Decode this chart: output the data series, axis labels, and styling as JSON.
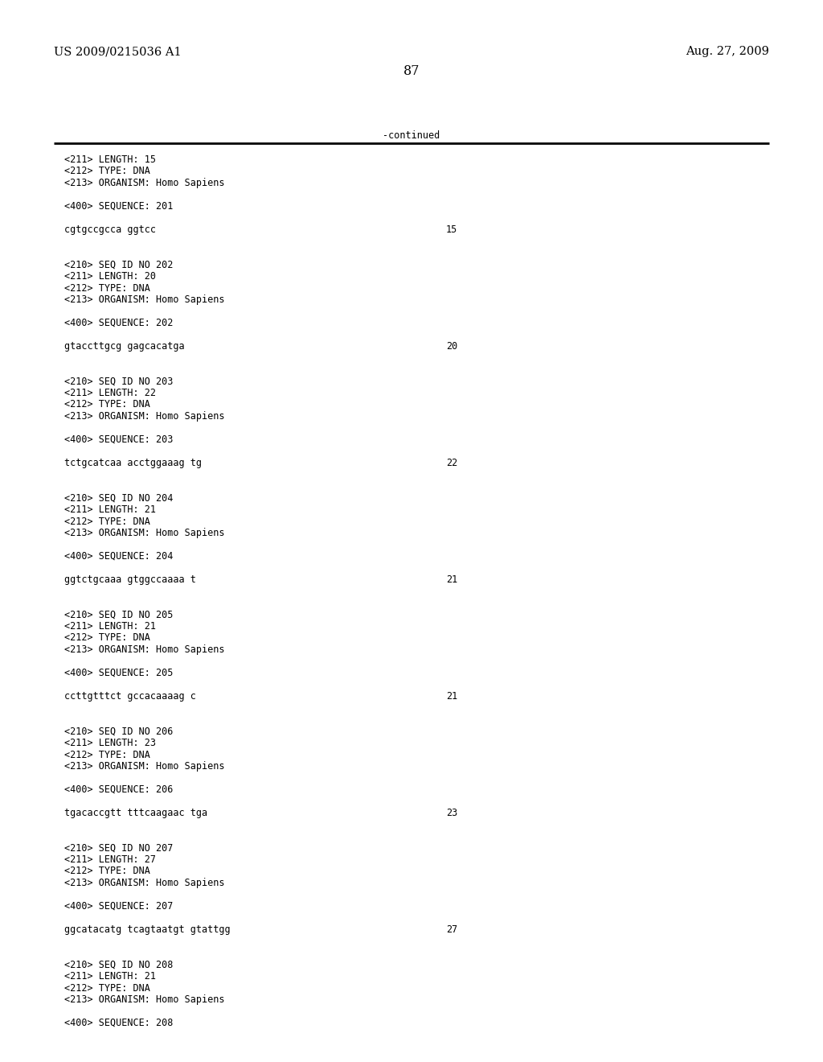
{
  "header_left": "US 2009/0215036 A1",
  "header_right": "Aug. 27, 2009",
  "page_number": "87",
  "continued_label": "-continued",
  "background_color": "#ffffff",
  "text_color": "#000000",
  "font_size_header": 10.5,
  "font_size_body": 8.5,
  "font_size_page": 11.5,
  "lines": [
    {
      "text": "<211> LENGTH: 15",
      "num": null
    },
    {
      "text": "<212> TYPE: DNA",
      "num": null
    },
    {
      "text": "<213> ORGANISM: Homo Sapiens",
      "num": null
    },
    {
      "text": "",
      "num": null
    },
    {
      "text": "<400> SEQUENCE: 201",
      "num": null
    },
    {
      "text": "",
      "num": null
    },
    {
      "text": "cgtgccgcca ggtcc",
      "num": "15"
    },
    {
      "text": "",
      "num": null
    },
    {
      "text": "",
      "num": null
    },
    {
      "text": "<210> SEQ ID NO 202",
      "num": null
    },
    {
      "text": "<211> LENGTH: 20",
      "num": null
    },
    {
      "text": "<212> TYPE: DNA",
      "num": null
    },
    {
      "text": "<213> ORGANISM: Homo Sapiens",
      "num": null
    },
    {
      "text": "",
      "num": null
    },
    {
      "text": "<400> SEQUENCE: 202",
      "num": null
    },
    {
      "text": "",
      "num": null
    },
    {
      "text": "gtaccttgcg gagcacatga",
      "num": "20"
    },
    {
      "text": "",
      "num": null
    },
    {
      "text": "",
      "num": null
    },
    {
      "text": "<210> SEQ ID NO 203",
      "num": null
    },
    {
      "text": "<211> LENGTH: 22",
      "num": null
    },
    {
      "text": "<212> TYPE: DNA",
      "num": null
    },
    {
      "text": "<213> ORGANISM: Homo Sapiens",
      "num": null
    },
    {
      "text": "",
      "num": null
    },
    {
      "text": "<400> SEQUENCE: 203",
      "num": null
    },
    {
      "text": "",
      "num": null
    },
    {
      "text": "tctgcatcaa acctggaaag tg",
      "num": "22"
    },
    {
      "text": "",
      "num": null
    },
    {
      "text": "",
      "num": null
    },
    {
      "text": "<210> SEQ ID NO 204",
      "num": null
    },
    {
      "text": "<211> LENGTH: 21",
      "num": null
    },
    {
      "text": "<212> TYPE: DNA",
      "num": null
    },
    {
      "text": "<213> ORGANISM: Homo Sapiens",
      "num": null
    },
    {
      "text": "",
      "num": null
    },
    {
      "text": "<400> SEQUENCE: 204",
      "num": null
    },
    {
      "text": "",
      "num": null
    },
    {
      "text": "ggtctgcaaa gtggccaaaa t",
      "num": "21"
    },
    {
      "text": "",
      "num": null
    },
    {
      "text": "",
      "num": null
    },
    {
      "text": "<210> SEQ ID NO 205",
      "num": null
    },
    {
      "text": "<211> LENGTH: 21",
      "num": null
    },
    {
      "text": "<212> TYPE: DNA",
      "num": null
    },
    {
      "text": "<213> ORGANISM: Homo Sapiens",
      "num": null
    },
    {
      "text": "",
      "num": null
    },
    {
      "text": "<400> SEQUENCE: 205",
      "num": null
    },
    {
      "text": "",
      "num": null
    },
    {
      "text": "ccttgtttct gccacaaaag c",
      "num": "21"
    },
    {
      "text": "",
      "num": null
    },
    {
      "text": "",
      "num": null
    },
    {
      "text": "<210> SEQ ID NO 206",
      "num": null
    },
    {
      "text": "<211> LENGTH: 23",
      "num": null
    },
    {
      "text": "<212> TYPE: DNA",
      "num": null
    },
    {
      "text": "<213> ORGANISM: Homo Sapiens",
      "num": null
    },
    {
      "text": "",
      "num": null
    },
    {
      "text": "<400> SEQUENCE: 206",
      "num": null
    },
    {
      "text": "",
      "num": null
    },
    {
      "text": "tgacaccgtt tttcaagaac tga",
      "num": "23"
    },
    {
      "text": "",
      "num": null
    },
    {
      "text": "",
      "num": null
    },
    {
      "text": "<210> SEQ ID NO 207",
      "num": null
    },
    {
      "text": "<211> LENGTH: 27",
      "num": null
    },
    {
      "text": "<212> TYPE: DNA",
      "num": null
    },
    {
      "text": "<213> ORGANISM: Homo Sapiens",
      "num": null
    },
    {
      "text": "",
      "num": null
    },
    {
      "text": "<400> SEQUENCE: 207",
      "num": null
    },
    {
      "text": "",
      "num": null
    },
    {
      "text": "ggcatacatg tcagtaatgt gtattgg",
      "num": "27"
    },
    {
      "text": "",
      "num": null
    },
    {
      "text": "",
      "num": null
    },
    {
      "text": "<210> SEQ ID NO 208",
      "num": null
    },
    {
      "text": "<211> LENGTH: 21",
      "num": null
    },
    {
      "text": "<212> TYPE: DNA",
      "num": null
    },
    {
      "text": "<213> ORGANISM: Homo Sapiens",
      "num": null
    },
    {
      "text": "",
      "num": null
    },
    {
      "text": "<400> SEQUENCE: 208",
      "num": null
    }
  ]
}
